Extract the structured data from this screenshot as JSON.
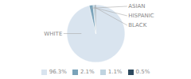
{
  "chart_data": {
    "type": "pie",
    "categories": [
      "WHITE",
      "ASIAN",
      "HISPANIC",
      "BLACK"
    ],
    "values": [
      96.3,
      2.1,
      1.1,
      0.5
    ],
    "value_labels": [
      "96.3%",
      "2.1%",
      "1.1%",
      "0.5%"
    ],
    "colors": [
      "#d9e4ef",
      "#7aa3ba",
      "#c0d4e0",
      "#2e4a5e"
    ],
    "legend": "bottom"
  }
}
